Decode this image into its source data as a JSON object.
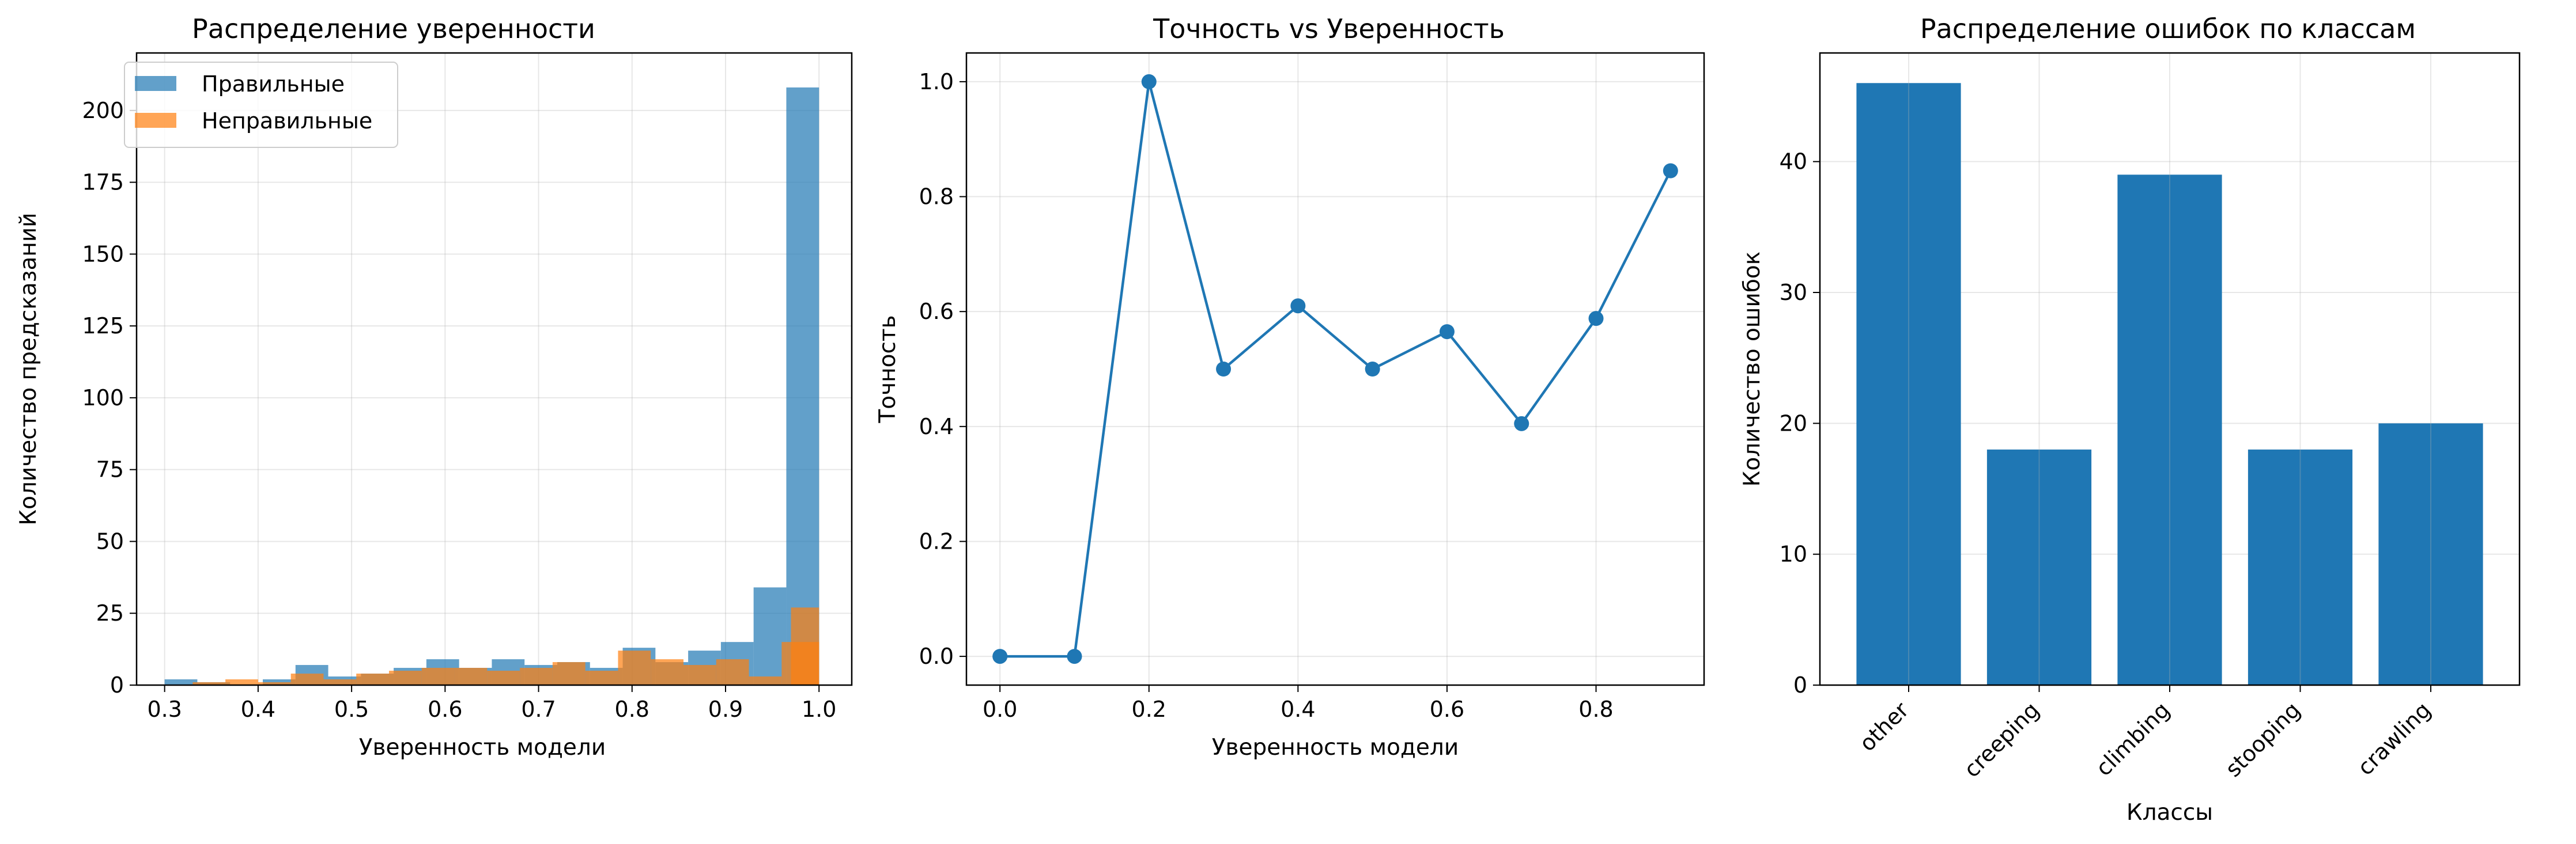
{
  "chart_data": [
    {
      "type": "bar",
      "subtype": "overlaid-histogram",
      "title": "Распределение уверенности",
      "xlabel": "Уверенность модели",
      "ylabel": "Количество предсказаний",
      "xlim": [
        0.27,
        1.035
      ],
      "ylim": [
        0,
        220
      ],
      "xticks": [
        "0.3",
        "0.4",
        "0.5",
        "0.6",
        "0.7",
        "0.8",
        "0.9",
        "1.0"
      ],
      "yticks": [
        "0",
        "25",
        "50",
        "75",
        "100",
        "125",
        "150",
        "175",
        "200"
      ],
      "grid": true,
      "legend_position": "top-left",
      "series": [
        {
          "name": "Правильные",
          "color": "#1f77b4",
          "bins": [
            [
              0.3,
              0.335,
              2
            ],
            [
              0.335,
              0.37,
              1
            ],
            [
              0.37,
              0.405,
              0
            ],
            [
              0.405,
              0.44,
              2
            ],
            [
              0.44,
              0.475,
              7
            ],
            [
              0.475,
              0.51,
              3
            ],
            [
              0.51,
              0.545,
              4
            ],
            [
              0.545,
              0.58,
              6
            ],
            [
              0.58,
              0.615,
              9
            ],
            [
              0.615,
              0.65,
              6
            ],
            [
              0.65,
              0.685,
              9
            ],
            [
              0.685,
              0.72,
              7
            ],
            [
              0.72,
              0.755,
              8
            ],
            [
              0.755,
              0.79,
              6
            ],
            [
              0.79,
              0.825,
              13
            ],
            [
              0.825,
              0.86,
              8
            ],
            [
              0.86,
              0.895,
              12
            ],
            [
              0.895,
              0.93,
              15
            ],
            [
              0.93,
              0.965,
              34
            ],
            [
              0.965,
              1.0,
              208
            ]
          ]
        },
        {
          "name": "Неправильные",
          "color": "#ff7f0e",
          "bins": [
            [
              0.33,
              0.365,
              1
            ],
            [
              0.365,
              0.4,
              2
            ],
            [
              0.4,
              0.435,
              1
            ],
            [
              0.435,
              0.47,
              4
            ],
            [
              0.47,
              0.505,
              2
            ],
            [
              0.505,
              0.54,
              4
            ],
            [
              0.54,
              0.575,
              5
            ],
            [
              0.575,
              0.61,
              6
            ],
            [
              0.61,
              0.645,
              6
            ],
            [
              0.645,
              0.68,
              5
            ],
            [
              0.68,
              0.715,
              6
            ],
            [
              0.715,
              0.75,
              8
            ],
            [
              0.75,
              0.785,
              5
            ],
            [
              0.785,
              0.82,
              12
            ],
            [
              0.82,
              0.855,
              9
            ],
            [
              0.855,
              0.89,
              7
            ],
            [
              0.89,
              0.925,
              9
            ],
            [
              0.925,
              0.96,
              3
            ],
            [
              0.96,
              1.0,
              15
            ],
            [
              0.97,
              1.0,
              27
            ]
          ]
        }
      ]
    },
    {
      "type": "line",
      "title": "Точность vs Уверенность",
      "xlabel": "Уверенность модели",
      "ylabel": "Точность",
      "xlim": [
        -0.045,
        0.945
      ],
      "ylim": [
        -0.05,
        1.05
      ],
      "xticks": [
        "0.0",
        "0.2",
        "0.4",
        "0.6",
        "0.8"
      ],
      "yticks": [
        "0.0",
        "0.2",
        "0.4",
        "0.6",
        "0.8",
        "1.0"
      ],
      "grid": true,
      "series": [
        {
          "color": "#1f77b4",
          "x": [
            0.0,
            0.1,
            0.2,
            0.3,
            0.4,
            0.5,
            0.6,
            0.7,
            0.8,
            0.9
          ],
          "y": [
            0.0,
            0.0,
            1.0,
            0.5,
            0.61,
            0.5,
            0.565,
            0.405,
            0.588,
            0.845
          ]
        }
      ]
    },
    {
      "type": "bar",
      "title": "Распределение ошибок по классам",
      "xlabel": "Классы",
      "ylabel": "Количество ошибок",
      "ylim": [
        0,
        48.3
      ],
      "yticks": [
        "0",
        "10",
        "20",
        "30",
        "40"
      ],
      "grid": true,
      "color": "#1f77b4",
      "categories": [
        "other",
        "creeping",
        "climbing",
        "stooping",
        "crawling"
      ],
      "values": [
        46,
        18,
        39,
        18,
        20
      ]
    }
  ]
}
